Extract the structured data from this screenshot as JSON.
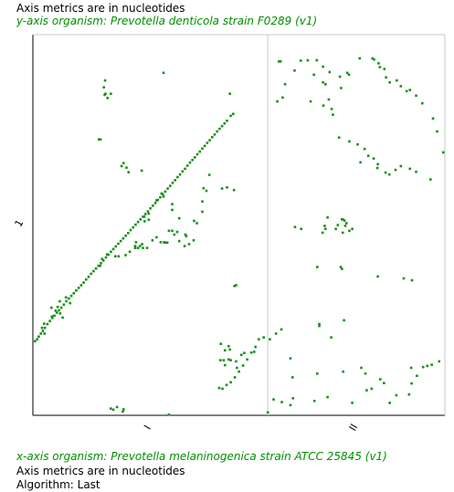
{
  "header": {
    "metrics_note": "Axis metrics are in nucleotides",
    "y_organism": "y-axis organism: Prevotella denticola strain F0289 (v1)"
  },
  "footer": {
    "x_organism": "x-axis organism: Prevotella melaninogenica strain ATCC 25845 (v1)",
    "metrics_note": "Axis metrics are in nucleotides",
    "algorithm": "Algorithm: Last"
  },
  "colors": {
    "match": "#1a8f1a",
    "text_green": "#008f00",
    "divider": "#c8c8c8",
    "axis": "#000000"
  },
  "chart_data": {
    "type": "scatter",
    "title": "",
    "xlabel": "",
    "ylabel": "",
    "xlim": [
      0,
      1000
    ],
    "ylim": [
      0,
      1000
    ],
    "grid": false,
    "x_segments": [
      {
        "label": "I",
        "start": 0,
        "end": 570
      },
      {
        "label": "II",
        "start": 570,
        "end": 1000
      }
    ],
    "y_segments": [
      {
        "label": "1",
        "start": 0,
        "end": 1000
      }
    ],
    "series": [
      {
        "points": [
          [
            5,
            195
          ],
          [
            10,
            200
          ],
          [
            14,
            207
          ],
          [
            19,
            215
          ],
          [
            24,
            222
          ],
          [
            29,
            230
          ],
          [
            35,
            240
          ],
          [
            41,
            248
          ],
          [
            47,
            256
          ],
          [
            52,
            262
          ],
          [
            58,
            270
          ],
          [
            63,
            276
          ],
          [
            69,
            283
          ],
          [
            75,
            291
          ],
          [
            81,
            300
          ],
          [
            87,
            307
          ],
          [
            93,
            314
          ],
          [
            99,
            321
          ],
          [
            105,
            328
          ],
          [
            111,
            335
          ],
          [
            117,
            342
          ],
          [
            123,
            349
          ],
          [
            129,
            357
          ],
          [
            135,
            364
          ],
          [
            141,
            372
          ],
          [
            147,
            379
          ],
          [
            153,
            386
          ],
          [
            159,
            393
          ],
          [
            165,
            400
          ],
          [
            171,
            407
          ],
          [
            177,
            415
          ],
          [
            183,
            422
          ],
          [
            189,
            430
          ],
          [
            195,
            437
          ],
          [
            201,
            444
          ],
          [
            207,
            451
          ],
          [
            213,
            458
          ],
          [
            219,
            465
          ],
          [
            225,
            472
          ],
          [
            231,
            479
          ],
          [
            237,
            487
          ],
          [
            243,
            494
          ],
          [
            249,
            501
          ],
          [
            255,
            508
          ],
          [
            261,
            515
          ],
          [
            267,
            522
          ],
          [
            273,
            529
          ],
          [
            279,
            536
          ],
          [
            285,
            544
          ],
          [
            291,
            551
          ],
          [
            297,
            558
          ],
          [
            303,
            566
          ],
          [
            309,
            573
          ],
          [
            315,
            581
          ],
          [
            321,
            588
          ],
          [
            327,
            596
          ],
          [
            333,
            603
          ],
          [
            339,
            611
          ],
          [
            345,
            618
          ],
          [
            351,
            626
          ],
          [
            357,
            633
          ],
          [
            363,
            641
          ],
          [
            369,
            648
          ],
          [
            375,
            656
          ],
          [
            381,
            664
          ],
          [
            387,
            671
          ],
          [
            393,
            678
          ],
          [
            399,
            686
          ],
          [
            405,
            693
          ],
          [
            411,
            701
          ],
          [
            417,
            708
          ],
          [
            423,
            716
          ],
          [
            429,
            723
          ],
          [
            435,
            731
          ],
          [
            441,
            738
          ],
          [
            447,
            746
          ],
          [
            453,
            753
          ],
          [
            459,
            760
          ],
          [
            465,
            767
          ],
          [
            471,
            774
          ],
          [
            480,
            787
          ],
          [
            486,
            792
          ],
          [
            22,
            230
          ],
          [
            27,
            241
          ],
          [
            46,
            260
          ],
          [
            55,
            275
          ],
          [
            60,
            285
          ],
          [
            45,
            283
          ],
          [
            65,
            300
          ],
          [
            66,
            268
          ],
          [
            80,
            310
          ],
          [
            90,
            295
          ],
          [
            28,
            215
          ],
          [
            72,
            257
          ],
          [
            175,
            880
          ],
          [
            172,
            862
          ],
          [
            176,
            845
          ],
          [
            174,
            842
          ],
          [
            181,
            834
          ],
          [
            189,
            845
          ],
          [
            160,
            725
          ],
          [
            164,
            725
          ],
          [
            227,
            651
          ],
          [
            220,
            663
          ],
          [
            232,
            639
          ],
          [
            215,
            655
          ],
          [
            264,
            643
          ],
          [
            270,
            522
          ],
          [
            271,
            510
          ],
          [
            281,
            514
          ],
          [
            281,
            530
          ],
          [
            300,
            565
          ],
          [
            312,
            583
          ],
          [
            317,
            575
          ],
          [
            338,
            555
          ],
          [
            338,
            485
          ],
          [
            343,
            475
          ],
          [
            355,
            518
          ],
          [
            338,
            540
          ],
          [
            355,
            458
          ],
          [
            368,
            445
          ],
          [
            379,
            450
          ],
          [
            372,
            471
          ],
          [
            370,
            475
          ],
          [
            391,
            511
          ],
          [
            398,
            505
          ],
          [
            411,
            562
          ],
          [
            411,
            535
          ],
          [
            421,
            590
          ],
          [
            428,
            632
          ],
          [
            459,
            596
          ],
          [
            471,
            599
          ],
          [
            488,
            592
          ],
          [
            414,
            597
          ],
          [
            390,
            460
          ],
          [
            350,
            482
          ],
          [
            330,
            485
          ],
          [
            326,
            454
          ],
          [
            321,
            454
          ],
          [
            318,
            455
          ],
          [
            310,
            455
          ],
          [
            265,
            450
          ],
          [
            250,
            455
          ],
          [
            248,
            440
          ],
          [
            235,
            430
          ],
          [
            225,
            421
          ],
          [
            208,
            418
          ],
          [
            200,
            418
          ],
          [
            180,
            423
          ],
          [
            168,
            411
          ],
          [
            163,
            393
          ],
          [
            300,
            468
          ],
          [
            290,
            460
          ],
          [
            277,
            440
          ],
          [
            267,
            440
          ],
          [
            260,
            445
          ],
          [
            255,
            440
          ],
          [
            248,
            445
          ],
          [
            317,
            900
          ],
          [
            478,
            845
          ],
          [
            493,
            342
          ],
          [
            489,
            340
          ],
          [
            560,
            205
          ],
          [
            548,
            200
          ],
          [
            540,
            180
          ],
          [
            530,
            165
          ],
          [
            520,
            147
          ],
          [
            510,
            131
          ],
          [
            500,
            115
          ],
          [
            490,
            100
          ],
          [
            480,
            87
          ],
          [
            470,
            80
          ],
          [
            460,
            70
          ],
          [
            452,
            72
          ],
          [
            537,
            167
          ],
          [
            513,
            164
          ],
          [
            506,
            159
          ],
          [
            478,
            173
          ],
          [
            475,
            182
          ],
          [
            466,
            171
          ],
          [
            475,
            147
          ],
          [
            463,
            145
          ],
          [
            455,
            145
          ],
          [
            480,
            145
          ],
          [
            493,
            142
          ],
          [
            495,
            125
          ],
          [
            456,
            188
          ],
          [
            466,
            132
          ],
          [
            204,
            22
          ],
          [
            189,
            18
          ],
          [
            195,
            15
          ],
          [
            218,
            10
          ],
          [
            220,
            16
          ],
          [
            330,
            2
          ],
          [
            570,
            8
          ],
          [
            584,
            42
          ],
          [
            604,
            35
          ],
          [
            625,
            27
          ],
          [
            631,
            45
          ],
          [
            683,
            38
          ],
          [
            715,
            48
          ],
          [
            775,
            33
          ],
          [
            810,
            66
          ],
          [
            822,
            70
          ],
          [
            866,
            33
          ],
          [
            882,
            53
          ],
          [
            919,
            84
          ],
          [
            932,
            104
          ],
          [
            947,
            127
          ],
          [
            957,
            130
          ],
          [
            968,
            133
          ],
          [
            986,
            142
          ],
          [
            575,
            200
          ],
          [
            590,
            215
          ],
          [
            603,
            226
          ],
          [
            636,
            495
          ],
          [
            651,
            490
          ],
          [
            703,
            480
          ],
          [
            710,
            490
          ],
          [
            715,
            520
          ],
          [
            735,
            490
          ],
          [
            740,
            500
          ],
          [
            750,
            515
          ],
          [
            756,
            512
          ],
          [
            761,
            505
          ],
          [
            768,
            485
          ],
          [
            775,
            490
          ],
          [
            748,
            860
          ],
          [
            705,
            814
          ],
          [
            725,
            805
          ],
          [
            718,
            830
          ],
          [
            674,
            825
          ],
          [
            593,
            825
          ],
          [
            597,
            930
          ],
          [
            601,
            930
          ],
          [
            650,
            932
          ],
          [
            682,
            895
          ],
          [
            704,
            875
          ],
          [
            710,
            870
          ],
          [
            745,
            890
          ],
          [
            763,
            900
          ],
          [
            767,
            895
          ],
          [
            793,
            938
          ],
          [
            824,
            938
          ],
          [
            828,
            935
          ],
          [
            839,
            925
          ],
          [
            842,
            915
          ],
          [
            853,
            910
          ],
          [
            857,
            888
          ],
          [
            866,
            875
          ],
          [
            883,
            880
          ],
          [
            893,
            865
          ],
          [
            907,
            852
          ],
          [
            915,
            855
          ],
          [
            930,
            840
          ],
          [
            945,
            820
          ],
          [
            971,
            780
          ],
          [
            981,
            746
          ],
          [
            996,
            691
          ],
          [
            965,
            620
          ],
          [
            930,
            640
          ],
          [
            915,
            648
          ],
          [
            893,
            655
          ],
          [
            880,
            645
          ],
          [
            865,
            633
          ],
          [
            856,
            638
          ],
          [
            836,
            650
          ],
          [
            837,
            660
          ],
          [
            827,
            675
          ],
          [
            814,
            682
          ],
          [
            795,
            665
          ],
          [
            805,
            700
          ],
          [
            788,
            712
          ],
          [
            768,
            720
          ],
          [
            743,
            730
          ],
          [
            728,
            790
          ],
          [
            720,
            902
          ],
          [
            704,
            916
          ],
          [
            689,
            933
          ],
          [
            667,
            933
          ],
          [
            635,
            906
          ],
          [
            612,
            870
          ],
          [
            606,
            835
          ],
          [
            750,
            385
          ],
          [
            690,
            390
          ],
          [
            747,
            390
          ],
          [
            708,
            498
          ],
          [
            752,
            515
          ],
          [
            758,
            498
          ],
          [
            752,
            480
          ],
          [
            837,
            365
          ],
          [
            920,
            355
          ],
          [
            900,
            360
          ],
          [
            807,
            110
          ],
          [
            852,
            85
          ],
          [
            913,
            55
          ],
          [
            630,
            100
          ],
          [
            625,
            150
          ],
          [
            690,
            110
          ],
          [
            753,
            115
          ],
          [
            797,
            125
          ],
          [
            843,
            95
          ],
          [
            918,
            125
          ],
          [
            755,
            250
          ],
          [
            695,
            235
          ],
          [
            695,
            240
          ],
          [
            724,
            205
          ]
        ]
      }
    ]
  }
}
